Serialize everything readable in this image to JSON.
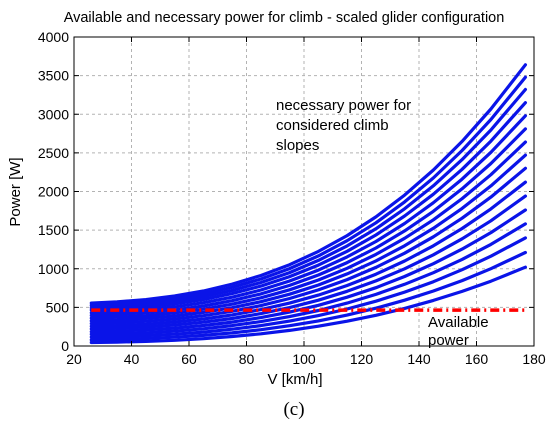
{
  "chart_data": {
    "type": "line",
    "title": "Available and necessary power for climb - scaled glider configuration",
    "xlabel": "V [km/h]",
    "ylabel": "Power [W]",
    "xlim": [
      20,
      180
    ],
    "ylim": [
      0,
      4000
    ],
    "xticks": [
      20,
      40,
      60,
      80,
      100,
      120,
      140,
      160,
      180
    ],
    "yticks": [
      0,
      500,
      1000,
      1500,
      2000,
      2500,
      3000,
      3500,
      4000
    ],
    "grid": true,
    "x": [
      26,
      35,
      45,
      55,
      65,
      75,
      85,
      95,
      105,
      115,
      125,
      135,
      145,
      155,
      165,
      177
    ],
    "necessary_curve_ends": [
      {
        "y_start": 45,
        "y_end": 1020
      },
      {
        "y_start": 80,
        "y_end": 1210
      },
      {
        "y_start": 115,
        "y_end": 1400
      },
      {
        "y_start": 150,
        "y_end": 1580
      },
      {
        "y_start": 185,
        "y_end": 1760
      },
      {
        "y_start": 220,
        "y_end": 1940
      },
      {
        "y_start": 255,
        "y_end": 2120
      },
      {
        "y_start": 290,
        "y_end": 2300
      },
      {
        "y_start": 325,
        "y_end": 2470
      },
      {
        "y_start": 360,
        "y_end": 2640
      },
      {
        "y_start": 395,
        "y_end": 2810
      },
      {
        "y_start": 430,
        "y_end": 2980
      },
      {
        "y_start": 465,
        "y_end": 3150
      },
      {
        "y_start": 495,
        "y_end": 3320
      },
      {
        "y_start": 525,
        "y_end": 3480
      },
      {
        "y_start": 555,
        "y_end": 3640
      }
    ],
    "available_power": {
      "x": [
        26,
        177
      ],
      "y": [
        465,
        465
      ]
    },
    "colors": {
      "necessary": "#0a14e8",
      "available": "#ff0000"
    },
    "annotations": {
      "necessary_line1": "necessary power for",
      "necessary_line2": "considered climb",
      "necessary_line3": "slopes",
      "available_line1": "Available",
      "available_line2": "power"
    }
  },
  "caption": "(c)"
}
